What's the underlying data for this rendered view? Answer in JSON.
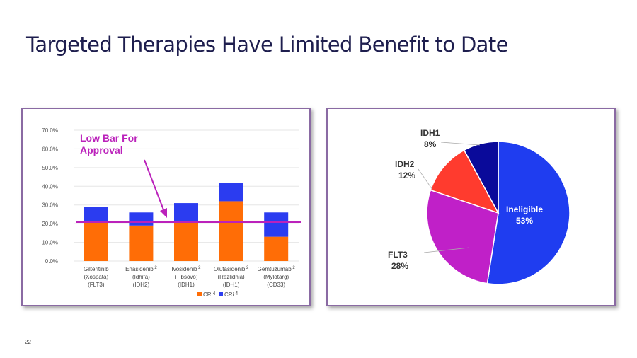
{
  "slide": {
    "title": "Targeted Therapies Have Limited Benefit to Date",
    "page_number": "22"
  },
  "chart_data": [
    {
      "type": "bar",
      "stacked": true,
      "categories": [
        {
          "lines": [
            "Gilteritinib",
            "(Xospata)",
            "(FLT3)"
          ],
          "sup": ""
        },
        {
          "lines": [
            "Enasidenib",
            "(Idhifa)",
            "(IDH2)"
          ],
          "sup": "2"
        },
        {
          "lines": [
            "Ivosidenib",
            "(Tibsovo)",
            "(IDH1)"
          ],
          "sup": "2"
        },
        {
          "lines": [
            "Olutasidenib",
            "(Rezlidhia)",
            "(IDH1)"
          ],
          "sup": "2"
        },
        {
          "lines": [
            "Gemtuzumab",
            "(Mylotarg)",
            "(CD33)"
          ],
          "sup": "2"
        }
      ],
      "series": [
        {
          "name": "CR",
          "sup": "4",
          "color": "#ff6d06",
          "values": [
            21,
            19,
            21,
            32,
            13
          ]
        },
        {
          "name": "CRi",
          "sup": "4",
          "color": "#2b3cf0",
          "values": [
            8,
            7,
            10,
            10,
            13
          ]
        }
      ],
      "ylim": [
        0,
        70
      ],
      "yticks": [
        "0.0%",
        "10.0%",
        "20.0%",
        "30.0%",
        "40.0%",
        "50.0%",
        "60.0%",
        "70.0%"
      ],
      "grid": true,
      "legend_position": "bottom",
      "threshold": {
        "value": 21,
        "color": "#bb22bb"
      },
      "annotation": {
        "lines": [
          "Low Bar For",
          "Approval"
        ],
        "color": "#bb22bb"
      }
    },
    {
      "type": "pie",
      "slices": [
        {
          "name": "Ineligible",
          "pct_label": "53%",
          "value": 53,
          "color": "#1f3df0",
          "label_inside": true
        },
        {
          "name": "FLT3",
          "pct_label": "28%",
          "value": 28,
          "color": "#c020c8",
          "label_inside": false
        },
        {
          "name": "IDH2",
          "pct_label": "12%",
          "value": 12,
          "color": "#ff3b2e",
          "label_inside": false
        },
        {
          "name": "IDH1",
          "pct_label": "8%",
          "value": 8,
          "color": "#0a0a9a",
          "label_inside": false
        }
      ]
    }
  ]
}
